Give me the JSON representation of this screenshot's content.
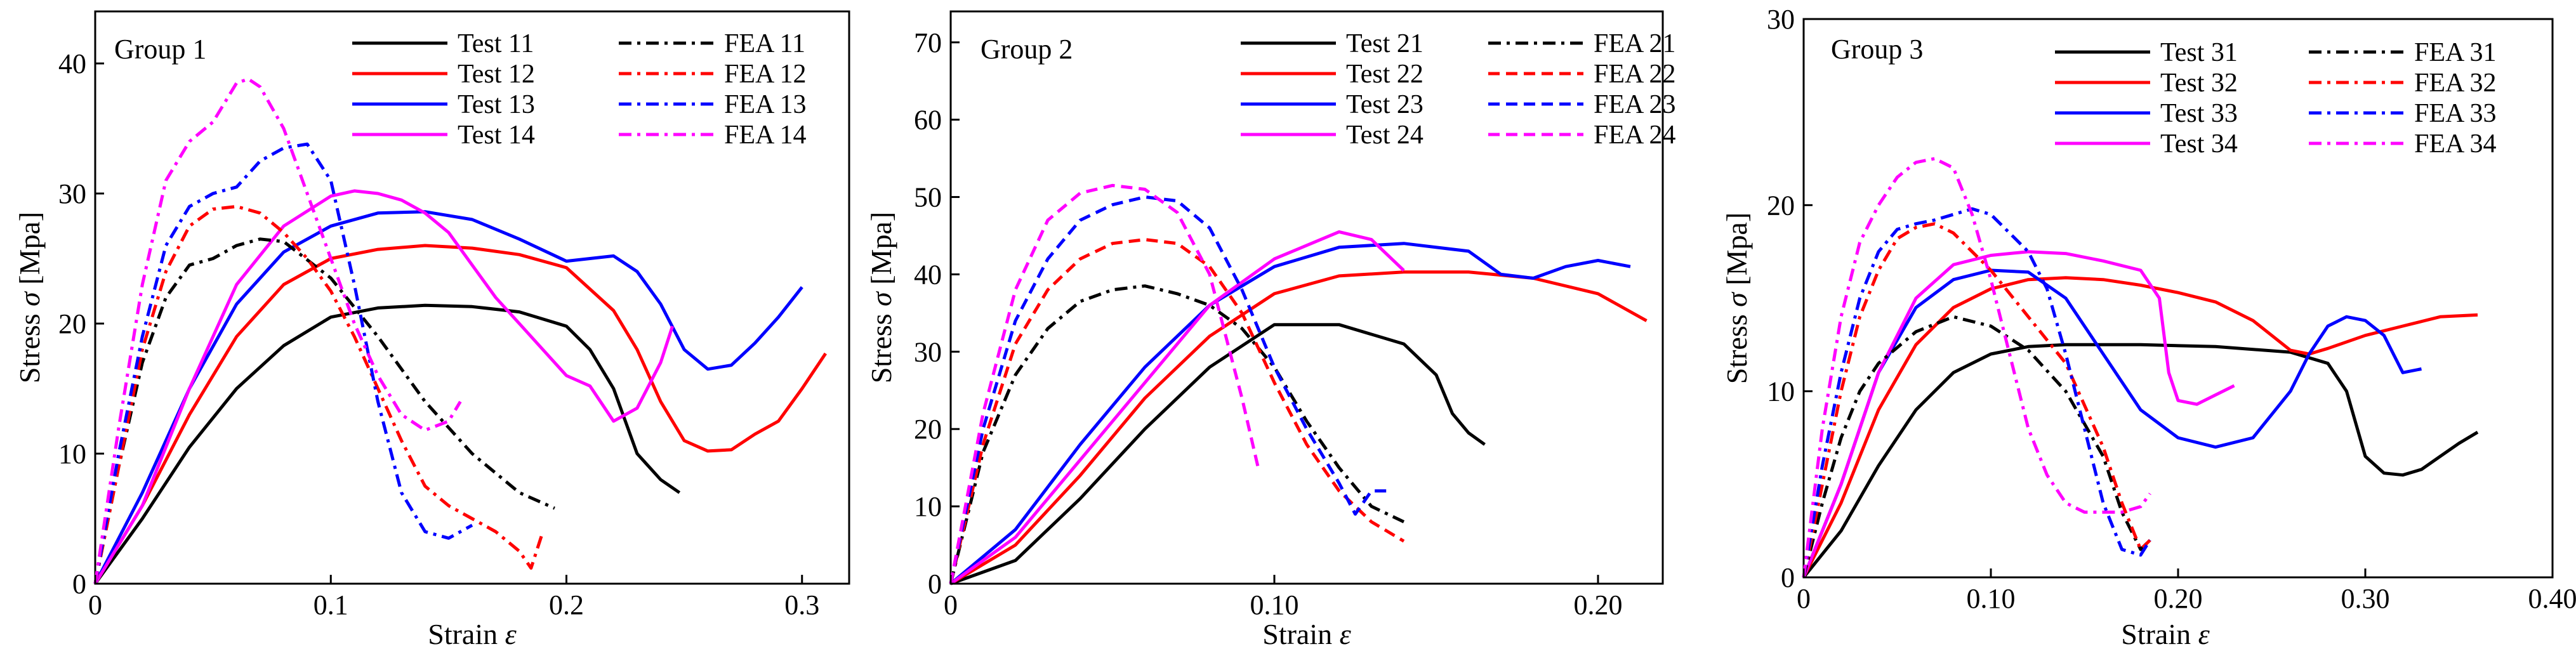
{
  "chart_data": [
    {
      "type": "line",
      "title": "Group 1",
      "xlabel": "Strain",
      "xlabel_symbol": "ε",
      "ylabel": "Stress",
      "ylabel_symbol": "σ",
      "ylabel_unit": "[Mpa]",
      "xlim": [
        0,
        0.32
      ],
      "ylim": [
        0,
        44
      ],
      "xticks": [
        0,
        0.1,
        0.2,
        0.3
      ],
      "xtick_labels": [
        "0",
        "0.1",
        "0.2",
        "0.3"
      ],
      "yticks": [
        0,
        10,
        20,
        30,
        40
      ],
      "ytick_labels": [
        "0",
        "10",
        "20",
        "30",
        "40"
      ],
      "legend_position": "top-right",
      "series": [
        {
          "name": "Test 11",
          "color": "#000000",
          "dash": "solid",
          "x": [
            0,
            0.02,
            0.04,
            0.06,
            0.08,
            0.1,
            0.12,
            0.14,
            0.16,
            0.18,
            0.2,
            0.21,
            0.22,
            0.23,
            0.24,
            0.248
          ],
          "y": [
            0,
            5,
            10.5,
            15,
            18.3,
            20.5,
            21.2,
            21.4,
            21.3,
            20.9,
            19.8,
            18,
            15,
            10,
            8,
            7
          ]
        },
        {
          "name": "Test 12",
          "color": "#ff0000",
          "dash": "solid",
          "x": [
            0,
            0.02,
            0.04,
            0.06,
            0.08,
            0.1,
            0.12,
            0.14,
            0.16,
            0.18,
            0.2,
            0.22,
            0.23,
            0.24,
            0.25,
            0.26,
            0.27,
            0.28,
            0.29,
            0.3,
            0.31
          ],
          "y": [
            0,
            6,
            13,
            19,
            23,
            25,
            25.7,
            26,
            25.8,
            25.3,
            24.3,
            21,
            18,
            14,
            11,
            10.2,
            10.3,
            11.5,
            12.5,
            15,
            17.7
          ]
        },
        {
          "name": "Test 13",
          "color": "#0000ff",
          "dash": "solid",
          "x": [
            0,
            0.02,
            0.04,
            0.06,
            0.08,
            0.1,
            0.12,
            0.14,
            0.16,
            0.18,
            0.2,
            0.21,
            0.22,
            0.23,
            0.24,
            0.25,
            0.26,
            0.27,
            0.28,
            0.29,
            0.3
          ],
          "y": [
            0,
            7,
            15,
            21.5,
            25.5,
            27.5,
            28.5,
            28.6,
            28,
            26.5,
            24.8,
            25,
            25.2,
            24,
            21.5,
            18,
            16.5,
            16.8,
            18.5,
            20.5,
            22.8
          ]
        },
        {
          "name": "Test 14",
          "color": "#ff00ff",
          "dash": "solid",
          "x": [
            0,
            0.02,
            0.04,
            0.06,
            0.08,
            0.1,
            0.11,
            0.12,
            0.13,
            0.14,
            0.15,
            0.16,
            0.17,
            0.18,
            0.19,
            0.2,
            0.21,
            0.22,
            0.23,
            0.24,
            0.245
          ],
          "y": [
            0,
            6,
            15,
            23,
            27.5,
            29.8,
            30.2,
            30,
            29.5,
            28.5,
            27,
            24.5,
            22,
            20,
            18,
            16,
            15.2,
            12.5,
            13.5,
            17,
            19.8
          ]
        },
        {
          "name": "FEA 11",
          "color": "#000000",
          "dash": "dashdot",
          "x": [
            0,
            0.01,
            0.02,
            0.03,
            0.04,
            0.05,
            0.06,
            0.07,
            0.08,
            0.1,
            0.12,
            0.14,
            0.16,
            0.18,
            0.195
          ],
          "y": [
            0,
            9,
            17,
            22,
            24.5,
            25,
            26,
            26.5,
            26.3,
            23.5,
            19,
            14,
            10,
            7,
            5.8
          ]
        },
        {
          "name": "FEA 12",
          "color": "#ff0000",
          "dash": "dashdot",
          "x": [
            0,
            0.01,
            0.02,
            0.03,
            0.04,
            0.05,
            0.06,
            0.07,
            0.08,
            0.09,
            0.1,
            0.11,
            0.12,
            0.13,
            0.14,
            0.15,
            0.16,
            0.17,
            0.18,
            0.185,
            0.19
          ],
          "y": [
            0,
            9,
            18,
            24,
            27.5,
            28.8,
            29,
            28.5,
            27,
            25,
            22.5,
            19,
            15,
            11,
            7.5,
            6,
            5,
            4,
            2.5,
            1.2,
            4
          ]
        },
        {
          "name": "FEA 13",
          "color": "#0000ff",
          "dash": "dashdot",
          "x": [
            0,
            0.01,
            0.02,
            0.03,
            0.04,
            0.05,
            0.06,
            0.07,
            0.08,
            0.09,
            0.1,
            0.11,
            0.12,
            0.13,
            0.14,
            0.15,
            0.16
          ],
          "y": [
            0,
            10,
            19,
            26,
            29,
            30,
            30.5,
            32.5,
            33.5,
            33.8,
            31,
            23,
            14,
            7,
            4,
            3.5,
            4.5
          ]
        },
        {
          "name": "FEA 14",
          "color": "#ff00ff",
          "dash": "dashdot",
          "x": [
            0,
            0.01,
            0.02,
            0.03,
            0.04,
            0.05,
            0.06,
            0.065,
            0.07,
            0.08,
            0.09,
            0.1,
            0.11,
            0.12,
            0.13,
            0.14,
            0.15,
            0.155
          ],
          "y": [
            0,
            12,
            23,
            31,
            34,
            35.5,
            38.5,
            38.8,
            38.2,
            35,
            30,
            25,
            20,
            16,
            13,
            11.8,
            12.5,
            14
          ]
        }
      ]
    },
    {
      "type": "line",
      "title": "Group 2",
      "xlabel": "Strain",
      "xlabel_symbol": "ε",
      "ylabel": "Stress",
      "ylabel_symbol": "σ",
      "ylabel_unit": "[Mpa]",
      "xlim": [
        0,
        0.22
      ],
      "ylim": [
        0,
        74
      ],
      "xticks": [
        0,
        0.1,
        0.2
      ],
      "xtick_labels": [
        "0",
        "0.10",
        "0.20"
      ],
      "yticks": [
        0,
        10,
        20,
        30,
        40,
        50,
        60,
        70
      ],
      "ytick_labels": [
        "0",
        "10",
        "20",
        "30",
        "40",
        "50",
        "60",
        "70"
      ],
      "legend_position": "top-right",
      "series": [
        {
          "name": "Test 21",
          "color": "#000000",
          "dash": "solid",
          "x": [
            0,
            0.02,
            0.04,
            0.06,
            0.08,
            0.1,
            0.12,
            0.14,
            0.15,
            0.155,
            0.16,
            0.165
          ],
          "y": [
            0,
            3,
            11,
            20,
            28,
            33.5,
            33.5,
            31,
            27,
            22,
            19.5,
            18
          ]
        },
        {
          "name": "Test 22",
          "color": "#ff0000",
          "dash": "solid",
          "x": [
            0,
            0.02,
            0.04,
            0.06,
            0.08,
            0.1,
            0.12,
            0.14,
            0.16,
            0.18,
            0.2,
            0.215
          ],
          "y": [
            0,
            5,
            14,
            24,
            32,
            37.5,
            39.8,
            40.3,
            40.3,
            39.5,
            37.5,
            34
          ]
        },
        {
          "name": "Test 23",
          "color": "#0000ff",
          "dash": "solid",
          "x": [
            0,
            0.02,
            0.04,
            0.06,
            0.08,
            0.1,
            0.12,
            0.14,
            0.16,
            0.17,
            0.18,
            0.19,
            0.2,
            0.21
          ],
          "y": [
            0,
            7,
            18,
            28,
            36,
            41,
            43.5,
            44,
            43,
            40,
            39.5,
            41,
            41.8,
            41
          ]
        },
        {
          "name": "Test 24",
          "color": "#ff00ff",
          "dash": "solid",
          "x": [
            0,
            0.02,
            0.04,
            0.06,
            0.08,
            0.1,
            0.12,
            0.13,
            0.14
          ],
          "y": [
            0,
            6,
            16,
            26,
            36,
            42,
            45.5,
            44.5,
            40.5
          ]
        },
        {
          "name": "FEA 21",
          "color": "#000000",
          "dash": "dashdot",
          "x": [
            0,
            0.01,
            0.02,
            0.03,
            0.04,
            0.05,
            0.06,
            0.07,
            0.08,
            0.09,
            0.1,
            0.11,
            0.12,
            0.13,
            0.14
          ],
          "y": [
            0,
            17,
            27,
            33,
            36.5,
            38,
            38.5,
            37.5,
            36,
            33,
            28,
            21,
            15,
            10,
            8
          ]
        },
        {
          "name": "FEA 22",
          "color": "#ff0000",
          "dash": "dash",
          "x": [
            0,
            0.01,
            0.02,
            0.03,
            0.04,
            0.05,
            0.06,
            0.07,
            0.08,
            0.09,
            0.1,
            0.11,
            0.12,
            0.13,
            0.14
          ],
          "y": [
            0,
            18,
            31,
            38,
            42,
            44,
            44.5,
            44,
            41,
            35,
            26,
            18,
            12,
            8,
            5.5
          ]
        },
        {
          "name": "FEA 23",
          "color": "#0000ff",
          "dash": "dash",
          "x": [
            0,
            0.01,
            0.02,
            0.03,
            0.04,
            0.05,
            0.06,
            0.07,
            0.08,
            0.09,
            0.1,
            0.11,
            0.12,
            0.125,
            0.13,
            0.135
          ],
          "y": [
            0,
            20,
            34,
            42,
            47,
            49,
            50,
            49.5,
            46,
            38,
            28,
            20,
            13,
            9,
            12,
            12
          ]
        },
        {
          "name": "FEA 24",
          "color": "#ff00ff",
          "dash": "dash",
          "x": [
            0,
            0.01,
            0.02,
            0.03,
            0.04,
            0.05,
            0.06,
            0.07,
            0.08,
            0.09,
            0.095
          ],
          "y": [
            0,
            22,
            38,
            47,
            50.5,
            51.5,
            51,
            48,
            40,
            24,
            15
          ]
        }
      ]
    },
    {
      "type": "line",
      "title": "Group 3",
      "xlabel": "Strain",
      "xlabel_symbol": "ε",
      "ylabel": "Stress",
      "ylabel_symbol": "σ",
      "ylabel_unit": "[Mpa]",
      "xlim": [
        0,
        0.4
      ],
      "ylim": [
        0,
        30
      ],
      "xticks": [
        0,
        0.1,
        0.2,
        0.3,
        0.4
      ],
      "xtick_labels": [
        "0",
        "0.10",
        "0.20",
        "0.30",
        "0.40"
      ],
      "yticks": [
        0,
        10,
        20,
        30
      ],
      "ytick_labels": [
        "0",
        "10",
        "20",
        "30"
      ],
      "legend_position": "top-right",
      "series": [
        {
          "name": "Test 31",
          "color": "#000000",
          "dash": "solid",
          "x": [
            0,
            0.02,
            0.04,
            0.06,
            0.08,
            0.1,
            0.12,
            0.14,
            0.18,
            0.22,
            0.26,
            0.28,
            0.29,
            0.3,
            0.31,
            0.32,
            0.33,
            0.34,
            0.35,
            0.36
          ],
          "y": [
            0,
            2.5,
            6,
            9,
            11,
            12,
            12.4,
            12.5,
            12.5,
            12.4,
            12.1,
            11.5,
            10,
            6.5,
            5.6,
            5.5,
            5.8,
            6.5,
            7.2,
            7.8
          ]
        },
        {
          "name": "Test 32",
          "color": "#ff0000",
          "dash": "solid",
          "x": [
            0,
            0.02,
            0.04,
            0.06,
            0.08,
            0.1,
            0.12,
            0.14,
            0.16,
            0.18,
            0.2,
            0.22,
            0.24,
            0.26,
            0.27,
            0.28,
            0.3,
            0.32,
            0.34,
            0.36
          ],
          "y": [
            0,
            4,
            9,
            12.5,
            14.5,
            15.5,
            16,
            16.1,
            16,
            15.7,
            15.3,
            14.8,
            13.8,
            12.2,
            12,
            12.3,
            13,
            13.5,
            14,
            14.1
          ]
        },
        {
          "name": "Test 33",
          "color": "#0000ff",
          "dash": "solid",
          "x": [
            0,
            0.02,
            0.04,
            0.06,
            0.08,
            0.1,
            0.12,
            0.14,
            0.16,
            0.18,
            0.2,
            0.22,
            0.24,
            0.26,
            0.27,
            0.28,
            0.29,
            0.3,
            0.31,
            0.32,
            0.33
          ],
          "y": [
            0,
            5,
            11,
            14.5,
            16,
            16.5,
            16.4,
            15,
            12,
            9,
            7.5,
            7,
            7.5,
            10,
            12,
            13.5,
            14,
            13.8,
            13,
            11,
            11.2
          ]
        },
        {
          "name": "Test 34",
          "color": "#ff00ff",
          "dash": "solid",
          "x": [
            0,
            0.02,
            0.04,
            0.06,
            0.08,
            0.1,
            0.12,
            0.14,
            0.16,
            0.18,
            0.19,
            0.195,
            0.2,
            0.21,
            0.22,
            0.23
          ],
          "y": [
            0,
            5,
            11,
            15,
            16.8,
            17.3,
            17.5,
            17.4,
            17,
            16.5,
            15,
            11,
            9.5,
            9.3,
            9.8,
            10.3
          ]
        },
        {
          "name": "FEA 31",
          "color": "#000000",
          "dash": "dashdot",
          "x": [
            0,
            0.01,
            0.02,
            0.03,
            0.04,
            0.06,
            0.08,
            0.1,
            0.12,
            0.14,
            0.16,
            0.17,
            0.18,
            0.185
          ],
          "y": [
            0,
            4,
            7.5,
            10,
            11.5,
            13.2,
            14,
            13.5,
            12.2,
            10,
            6.5,
            3.5,
            1.5,
            2
          ]
        },
        {
          "name": "FEA 32",
          "color": "#ff0000",
          "dash": "dashdot",
          "x": [
            0,
            0.01,
            0.02,
            0.03,
            0.04,
            0.05,
            0.06,
            0.07,
            0.08,
            0.09,
            0.1,
            0.12,
            0.14,
            0.16,
            0.17,
            0.18,
            0.185
          ],
          "y": [
            0,
            5,
            10,
            14,
            16.5,
            18.2,
            18.8,
            19,
            18.5,
            17.5,
            16.5,
            14,
            11.5,
            7,
            4,
            1.5,
            2
          ]
        },
        {
          "name": "FEA 33",
          "color": "#0000ff",
          "dash": "dashdot",
          "x": [
            0,
            0.01,
            0.02,
            0.03,
            0.04,
            0.05,
            0.06,
            0.07,
            0.08,
            0.09,
            0.1,
            0.11,
            0.12,
            0.13,
            0.14,
            0.15,
            0.16,
            0.17,
            0.18,
            0.185
          ],
          "y": [
            0,
            6,
            11,
            15,
            17.5,
            18.7,
            19,
            19.2,
            19.5,
            19.8,
            19.5,
            18.5,
            17.5,
            15.5,
            12,
            8,
            4,
            1.5,
            1.2,
            2
          ]
        },
        {
          "name": "FEA 34",
          "color": "#ff00ff",
          "dash": "dashdot",
          "x": [
            0,
            0.01,
            0.02,
            0.03,
            0.04,
            0.05,
            0.06,
            0.07,
            0.08,
            0.09,
            0.1,
            0.11,
            0.12,
            0.13,
            0.14,
            0.15,
            0.16,
            0.17,
            0.18,
            0.185
          ],
          "y": [
            0,
            8,
            14,
            18,
            20,
            21.5,
            22.3,
            22.5,
            22,
            19.5,
            16,
            12,
            8,
            5.5,
            4,
            3.5,
            3.5,
            3.5,
            3.8,
            4.5
          ]
        }
      ]
    }
  ]
}
